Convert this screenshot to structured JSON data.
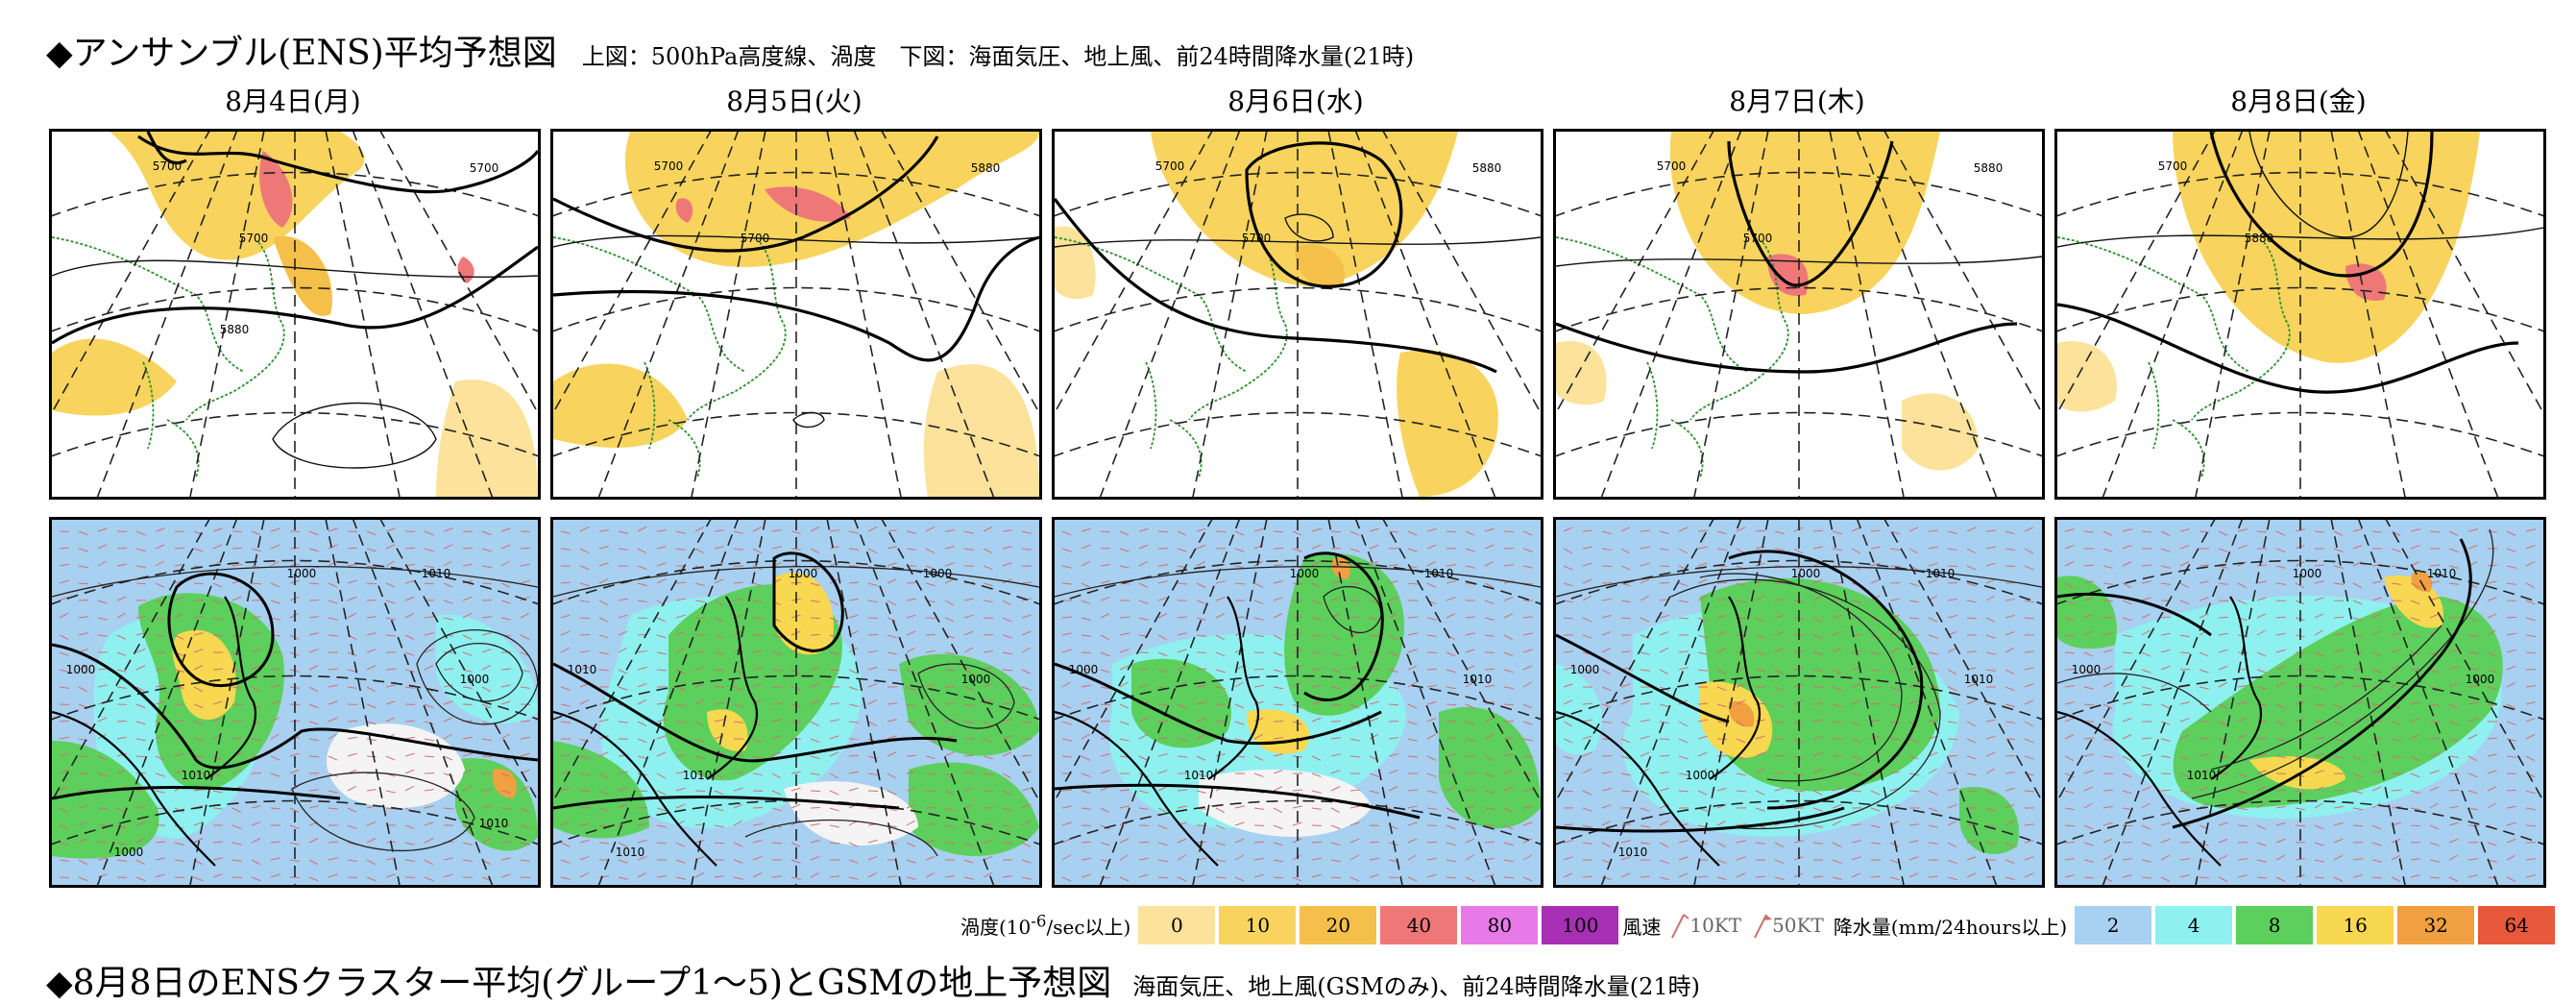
{
  "header": {
    "title": "◆アンサンブル(ENS)平均予想図",
    "subtitle": "上図：500hPa高度線、渦度　下図：海面気圧、地上風、前24時間降水量(21時)"
  },
  "dates": [
    "8月4日(月)",
    "8月5日(火)",
    "8月6日(水)",
    "8月7日(木)",
    "8月8日(金)"
  ],
  "top_maps": [
    {
      "labels": [
        "5700",
        "5700",
        "5700",
        "5880"
      ]
    },
    {
      "labels": [
        "5700",
        "5700",
        "5880"
      ]
    },
    {
      "labels": [
        "5700",
        "5700",
        "5880"
      ]
    },
    {
      "labels": [
        "5700",
        "5700",
        "5880"
      ]
    },
    {
      "labels": [
        "5700",
        "5880"
      ]
    }
  ],
  "bottom_maps": [
    {
      "labels": [
        "1000",
        "1010",
        "1000",
        "1000",
        "1010",
        "1000",
        "1010"
      ]
    },
    {
      "labels": [
        "1000",
        "1000",
        "1010",
        "1000",
        "1010",
        "1010"
      ]
    },
    {
      "labels": [
        "1000",
        "1010",
        "1000",
        "1010",
        "1010"
      ]
    },
    {
      "labels": [
        "1000",
        "1010",
        "1000",
        "1010",
        "1000",
        "1010"
      ]
    },
    {
      "labels": [
        "1000",
        "1010",
        "1000",
        "1000",
        "1010"
      ]
    }
  ],
  "legend": {
    "vorticity_label": "渦度(10",
    "vorticity_exp": "-6",
    "vorticity_unit": "/sec以上)",
    "vorticity_levels": [
      {
        "value": "0",
        "color": "#fce29a"
      },
      {
        "value": "10",
        "color": "#f8d45e"
      },
      {
        "value": "20",
        "color": "#f4c04a"
      },
      {
        "value": "40",
        "color": "#ee7878"
      },
      {
        "value": "80",
        "color": "#e87ae8"
      },
      {
        "value": "100",
        "color": "#a72fb4"
      }
    ],
    "wind_label": "風速",
    "wind_10": "10KT",
    "wind_50": "50KT",
    "precip_label": "降水量(mm/24hours以上)",
    "precip_levels": [
      {
        "value": "2",
        "color": "#a8d0f0"
      },
      {
        "value": "4",
        "color": "#8ff0f0"
      },
      {
        "value": "8",
        "color": "#5ccf5c"
      },
      {
        "value": "16",
        "color": "#f8d850"
      },
      {
        "value": "32",
        "color": "#f0a040"
      },
      {
        "value": "64",
        "color": "#e8583a"
      }
    ]
  },
  "footer": {
    "title": "◆8月8日のENSクラスター平均(グループ1〜5)とGSMの地上予想図",
    "subtitle": "海面気圧、地上風(GSMのみ)、前24時間降水量(21時)"
  }
}
